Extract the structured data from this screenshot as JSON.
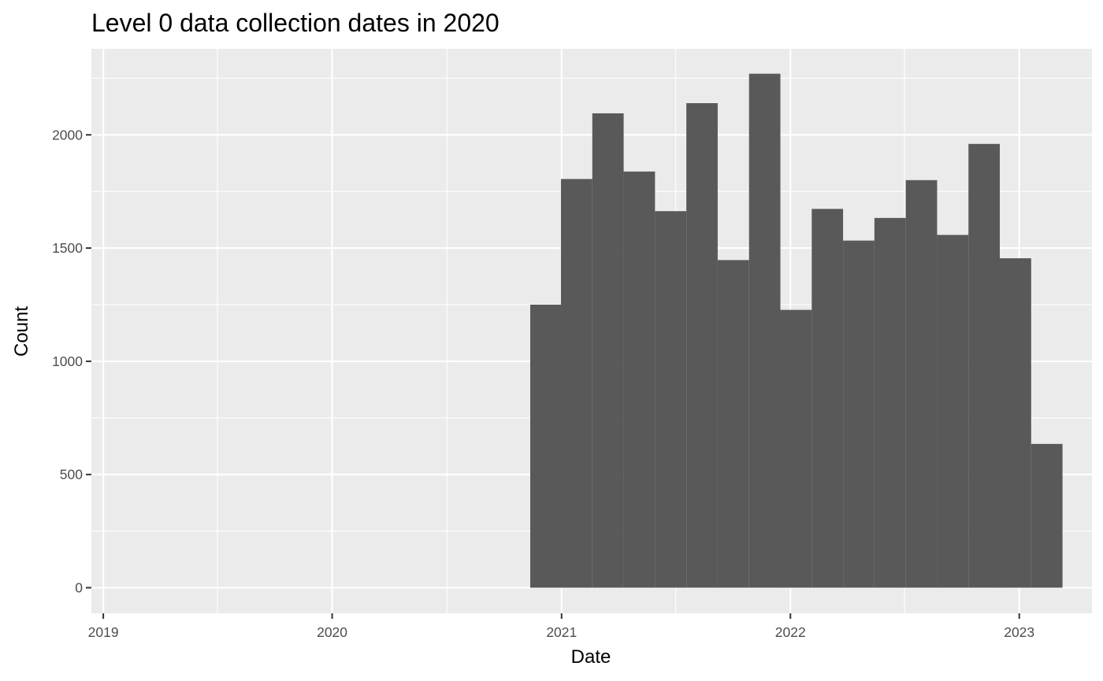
{
  "chart_data": {
    "type": "bar",
    "title": "Level 0 data collection dates in 2020",
    "xlabel": "Date",
    "ylabel": "Count",
    "x_ticks": [
      "2019",
      "2020",
      "2021",
      "2022",
      "2023"
    ],
    "y_ticks": [
      "0",
      "500",
      "1000",
      "1500",
      "2000"
    ],
    "xlim": [
      "2018-12-13",
      "2023-04-27"
    ],
    "ylim": [
      -113,
      2380
    ],
    "grid": true,
    "panel_background": "#ebebeb",
    "bar_color": "#595959",
    "gridline_color": "#ffffff",
    "bins": [
      {
        "start": "2020-11-12",
        "end": "2020-12-31",
        "count": 1250
      },
      {
        "start": "2020-12-31",
        "end": "2021-02-19",
        "count": 1805
      },
      {
        "start": "2021-02-19",
        "end": "2021-04-10",
        "count": 2095
      },
      {
        "start": "2021-04-10",
        "end": "2021-05-30",
        "count": 1838
      },
      {
        "start": "2021-05-30",
        "end": "2021-07-19",
        "count": 1663
      },
      {
        "start": "2021-07-19",
        "end": "2021-09-07",
        "count": 2140
      },
      {
        "start": "2021-09-07",
        "end": "2021-10-27",
        "count": 1447
      },
      {
        "start": "2021-10-27",
        "end": "2021-12-16",
        "count": 2270
      },
      {
        "start": "2021-12-16",
        "end": "2022-02-04",
        "count": 1227
      },
      {
        "start": "2022-02-04",
        "end": "2022-03-26",
        "count": 1673
      },
      {
        "start": "2022-03-26",
        "end": "2022-05-15",
        "count": 1533
      },
      {
        "start": "2022-05-15",
        "end": "2022-07-04",
        "count": 1633
      },
      {
        "start": "2022-07-04",
        "end": "2022-08-23",
        "count": 1800
      },
      {
        "start": "2022-08-23",
        "end": "2022-10-12",
        "count": 1558
      },
      {
        "start": "2022-10-12",
        "end": "2022-12-01",
        "count": 1960
      },
      {
        "start": "2022-12-01",
        "end": "2023-01-20",
        "count": 1455
      },
      {
        "start": "2023-01-20",
        "end": "2023-03-11",
        "count": 635
      }
    ]
  }
}
